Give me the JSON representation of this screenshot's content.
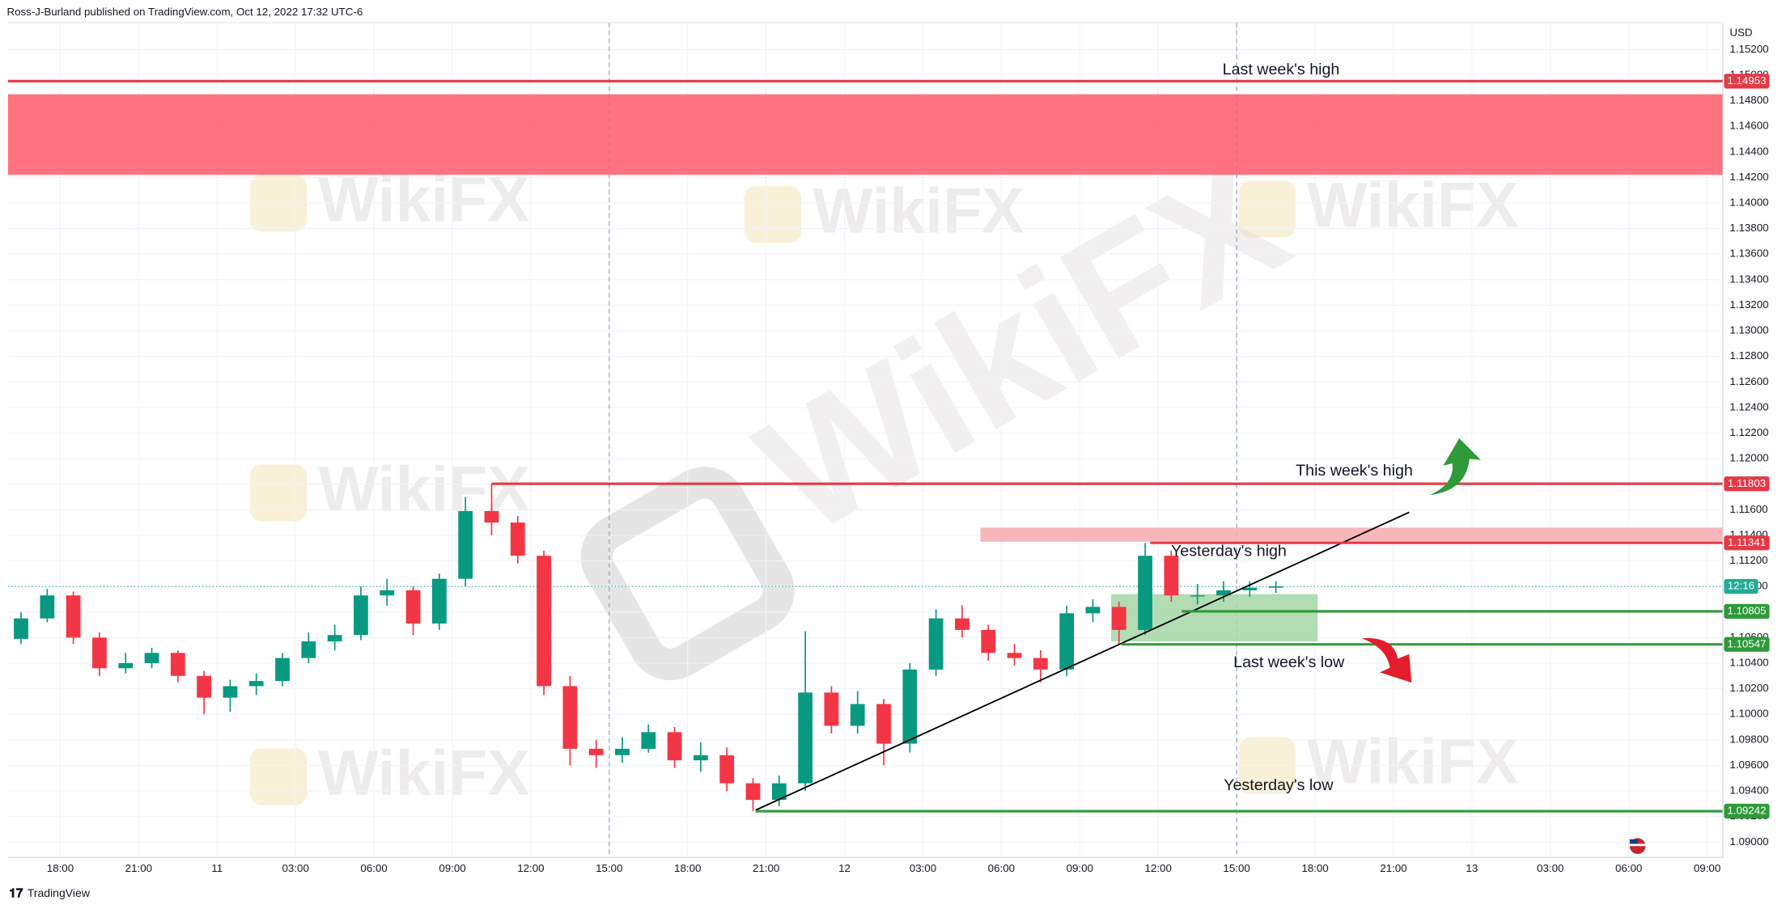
{
  "header": "Ross-J-Burland published on TradingView.com, Oct 12, 2022 17:32 UTC-6",
  "footer": "TradingView",
  "watermark": "WikiFX",
  "chart_data": {
    "type": "candlestick",
    "currency": "USD",
    "up_color": "#089981",
    "down_color": "#f23645",
    "xlim": [
      0,
      65.6
    ],
    "ylim": [
      1.0888,
      1.1541
    ],
    "xticks": [
      {
        "value": 2,
        "label": "18:00"
      },
      {
        "value": 5,
        "label": "21:00"
      },
      {
        "value": 8,
        "label": "11"
      },
      {
        "value": 11,
        "label": "03:00"
      },
      {
        "value": 14,
        "label": "06:00"
      },
      {
        "value": 17,
        "label": "09:00"
      },
      {
        "value": 20,
        "label": "12:00"
      },
      {
        "value": 23,
        "label": "15:00"
      },
      {
        "value": 26,
        "label": "18:00"
      },
      {
        "value": 29,
        "label": "21:00"
      },
      {
        "value": 32,
        "label": "12"
      },
      {
        "value": 35,
        "label": "03:00"
      },
      {
        "value": 38,
        "label": "06:00"
      },
      {
        "value": 41,
        "label": "09:00"
      },
      {
        "value": 44,
        "label": "12:00"
      },
      {
        "value": 47,
        "label": "15:00"
      },
      {
        "value": 50,
        "label": "18:00"
      },
      {
        "value": 53,
        "label": "21:00"
      },
      {
        "value": 56,
        "label": "13"
      },
      {
        "value": 59,
        "label": "03:00"
      },
      {
        "value": 62,
        "label": "06:00"
      },
      {
        "value": 65,
        "label": "09:00"
      }
    ],
    "yticks": [
      {
        "value": 1.09,
        "label": "1.09000"
      },
      {
        "value": 1.092,
        "label": "1.09200"
      },
      {
        "value": 1.094,
        "label": "1.09400"
      },
      {
        "value": 1.096,
        "label": "1.09600"
      },
      {
        "value": 1.098,
        "label": "1.09800"
      },
      {
        "value": 1.1,
        "label": "1.10000"
      },
      {
        "value": 1.102,
        "label": "1.10200"
      },
      {
        "value": 1.104,
        "label": "1.10400"
      },
      {
        "value": 1.106,
        "label": "1.10600"
      },
      {
        "value": 1.108,
        "label": "1.10800"
      },
      {
        "value": 1.11,
        "label": "1.11000"
      },
      {
        "value": 1.112,
        "label": "1.11200"
      },
      {
        "value": 1.114,
        "label": "1.11400"
      },
      {
        "value": 1.116,
        "label": "1.11600"
      },
      {
        "value": 1.118,
        "label": "1.11800"
      },
      {
        "value": 1.12,
        "label": "1.12000"
      },
      {
        "value": 1.122,
        "label": "1.12200"
      },
      {
        "value": 1.124,
        "label": "1.12400"
      },
      {
        "value": 1.126,
        "label": "1.12600"
      },
      {
        "value": 1.128,
        "label": "1.12800"
      },
      {
        "value": 1.13,
        "label": "1.13000"
      },
      {
        "value": 1.132,
        "label": "1.13200"
      },
      {
        "value": 1.134,
        "label": "1.13400"
      },
      {
        "value": 1.136,
        "label": "1.13600"
      },
      {
        "value": 1.138,
        "label": "1.13800"
      },
      {
        "value": 1.14,
        "label": "1.14000"
      },
      {
        "value": 1.142,
        "label": "1.14200"
      },
      {
        "value": 1.144,
        "label": "1.14400"
      },
      {
        "value": 1.146,
        "label": "1.14600"
      },
      {
        "value": 1.148,
        "label": "1.14800"
      },
      {
        "value": 1.15,
        "label": "1.15000"
      },
      {
        "value": 1.152,
        "label": "1.15200"
      }
    ],
    "open": [
      1.1059,
      1.1075,
      1.1093,
      1.106,
      1.1036,
      1.104,
      1.1048,
      1.103,
      1.1013,
      1.1022,
      1.1026,
      1.1044,
      1.1057,
      1.1062,
      1.1093,
      1.1097,
      1.1071,
      1.1106,
      1.1159,
      1.115,
      1.1124,
      1.1022,
      1.0973,
      1.0968,
      1.0973,
      1.0986,
      1.0964,
      1.0968,
      1.0946,
      1.0933,
      1.0946,
      1.1017,
      1.0991,
      1.1008,
      1.0977,
      1.1035,
      1.1075,
      1.1066,
      1.1048,
      1.1044,
      1.1035,
      1.1079,
      1.1084,
      1.1066,
      1.1124,
      1.1093,
      1.1093,
      1.1097,
      1.1099
    ],
    "high": [
      1.108,
      1.1098,
      1.1096,
      1.1064,
      1.1048,
      1.1052,
      1.105,
      1.1034,
      1.1027,
      1.1032,
      1.1048,
      1.1064,
      1.107,
      1.11,
      1.1106,
      1.11,
      1.111,
      1.117,
      1.11803,
      1.1155,
      1.1128,
      1.103,
      1.098,
      1.0982,
      1.0992,
      1.099,
      1.0978,
      1.0974,
      1.095,
      1.0952,
      1.1065,
      1.1022,
      1.1018,
      1.1012,
      1.104,
      1.1082,
      1.1085,
      1.107,
      1.1055,
      1.105,
      1.1085,
      1.109,
      1.1088,
      1.11341,
      1.1128,
      1.1102,
      1.1104,
      1.1104,
      1.1104
    ],
    "low": [
      1.1055,
      1.1072,
      1.1055,
      1.103,
      1.1032,
      1.1036,
      1.1025,
      1.1,
      1.1002,
      1.1015,
      1.1022,
      1.104,
      1.105,
      1.1058,
      1.1085,
      1.1062,
      1.1066,
      1.11,
      1.114,
      1.1118,
      1.1015,
      1.096,
      1.0958,
      1.0962,
      1.097,
      1.0958,
      1.0955,
      1.094,
      1.09242,
      1.0928,
      1.094,
      1.0985,
      1.0985,
      1.096,
      1.097,
      1.103,
      1.106,
      1.1042,
      1.1038,
      1.1025,
      1.103,
      1.1072,
      1.10547,
      1.1062,
      1.1088,
      1.1086,
      1.1088,
      1.1092,
      1.1095
    ],
    "close": [
      1.1075,
      1.1093,
      1.106,
      1.1036,
      1.104,
      1.1048,
      1.103,
      1.1013,
      1.1022,
      1.1026,
      1.1044,
      1.1057,
      1.1062,
      1.1093,
      1.1097,
      1.1071,
      1.1106,
      1.1159,
      1.115,
      1.1124,
      1.1022,
      1.0973,
      1.0968,
      1.0973,
      1.0986,
      1.0964,
      1.0968,
      1.0946,
      1.0933,
      1.0946,
      1.1017,
      1.0991,
      1.1008,
      1.0977,
      1.1035,
      1.1075,
      1.1066,
      1.1048,
      1.1044,
      1.1035,
      1.1079,
      1.1084,
      1.1066,
      1.1124,
      1.1093,
      1.1093,
      1.1097,
      1.1099,
      1.11
    ],
    "last_price": 1.11,
    "countdown": "12:16",
    "last_color": "#22ab94",
    "vlines": [
      23,
      47
    ],
    "zones": [
      {
        "x": [
          0,
          65.6
        ],
        "y": [
          1.1422,
          1.1485
        ],
        "color": "#ff5a6a"
      },
      {
        "x": [
          37.2,
          65.6
        ],
        "y": [
          1.1135,
          1.1146
        ],
        "color": "#f7a8b0"
      },
      {
        "x": [
          42.2,
          50.1
        ],
        "y": [
          1.1057,
          1.1094
        ],
        "color": "#a5d6a7"
      }
    ],
    "levels": [
      {
        "price": 1.14953,
        "start": 0,
        "color": "#e53945"
      },
      {
        "price": 1.11803,
        "start": 18.5,
        "color": "#e53945"
      },
      {
        "price": 1.11341,
        "start": 43.7,
        "color": "#e53945"
      },
      {
        "price": 1.10805,
        "start": 44.9,
        "color": "#2e9a3a"
      },
      {
        "price": 1.10547,
        "start": 42.6,
        "color": "#2e9a3a"
      },
      {
        "price": 1.09242,
        "start": 28.6,
        "color": "#2e9a3a"
      }
    ],
    "trendline": {
      "x": [
        28.6,
        53.6
      ],
      "y": [
        1.0925,
        1.1158
      ]
    },
    "annotations": [
      {
        "text": "Last week's high",
        "x": 48.7,
        "y": 1.1504
      },
      {
        "text": "This week's high",
        "x": 51.5,
        "y": 1.119
      },
      {
        "text": "Yesterday's high",
        "x": 46.7,
        "y": 1.1127
      },
      {
        "text": "Last week's low",
        "x": 49,
        "y": 1.104
      },
      {
        "text": "Yesterday's low",
        "x": 48.6,
        "y": 1.0944
      }
    ]
  }
}
